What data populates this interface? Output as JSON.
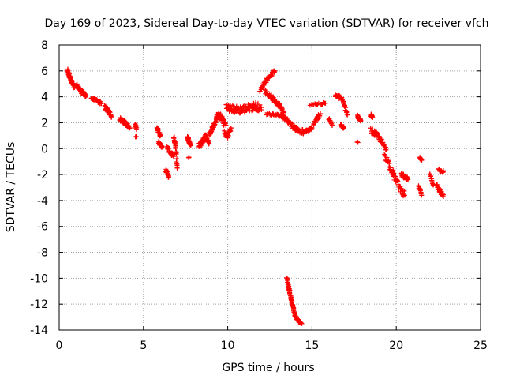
{
  "colors": {
    "series": "#ff0000",
    "grid": "#a0a0a0",
    "axis": "#000000"
  },
  "chart_data": {
    "type": "scatter",
    "title": "Day 169 of 2023, Sidereal Day-to-day VTEC variation (SDTVAR) for receiver vfch",
    "xlabel": "GPS time / hours",
    "ylabel": "SDTVAR / TECUs",
    "xlim": [
      0,
      25
    ],
    "ylim": [
      -14,
      8
    ],
    "xticks": [
      0,
      5,
      10,
      15,
      20,
      25
    ],
    "yticks": [
      -14,
      -12,
      -10,
      -8,
      -6,
      -4,
      -2,
      0,
      2,
      4,
      6,
      8
    ],
    "grid": true,
    "legend": "none",
    "marker": "plus",
    "series": [
      {
        "name": "SDTVAR",
        "segments": [
          {
            "x": [
              0.5,
              0.6,
              0.7,
              0.8,
              0.9
            ],
            "y": [
              6.0,
              5.6,
              5.3,
              5.0,
              4.7
            ],
            "spread": 0.35
          },
          {
            "x": [
              1.0,
              1.2,
              1.4,
              1.6
            ],
            "y": [
              4.9,
              4.6,
              4.3,
              4.1
            ],
            "spread": 0.3
          },
          {
            "x": [
              1.9,
              2.2,
              2.5
            ],
            "y": [
              3.9,
              3.7,
              3.5
            ],
            "spread": 0.2
          },
          {
            "x": [
              2.7,
              2.9,
              3.1
            ],
            "y": [
              3.2,
              3.0,
              2.4
            ],
            "spread": 0.35
          },
          {
            "x": [
              3.6,
              3.8,
              4.0,
              4.2
            ],
            "y": [
              2.3,
              2.1,
              1.9,
              1.6
            ],
            "spread": 0.3
          },
          {
            "x": [
              4.5,
              4.6
            ],
            "y": [
              1.9,
              1.5
            ],
            "spread": 0.2
          },
          {
            "x": [
              4.55
            ],
            "y": [
              0.9
            ],
            "spread": 0.1
          },
          {
            "x": [
              5.8,
              5.9,
              6.0
            ],
            "y": [
              1.6,
              1.3,
              1.0
            ],
            "spread": 0.2
          },
          {
            "x": [
              5.9,
              6.0,
              6.1
            ],
            "y": [
              0.5,
              0.3,
              0.1
            ],
            "spread": 0.2
          },
          {
            "x": [
              6.4,
              6.6,
              6.8
            ],
            "y": [
              0.1,
              -0.3,
              -0.6
            ],
            "spread": 0.3
          },
          {
            "x": [
              6.3,
              6.5
            ],
            "y": [
              -1.6,
              -2.2
            ],
            "spread": 0.35
          },
          {
            "x": [
              6.8,
              6.9,
              7.0
            ],
            "y": [
              0.8,
              0.3,
              -1.5
            ],
            "spread": 0.4
          },
          {
            "x": [
              7.6,
              7.7,
              7.8
            ],
            "y": [
              0.9,
              0.6,
              0.3
            ],
            "spread": 0.3
          },
          {
            "x": [
              7.7
            ],
            "y": [
              -0.7
            ],
            "spread": 0.1
          },
          {
            "x": [
              8.3,
              8.5,
              8.7,
              8.9
            ],
            "y": [
              0.2,
              0.6,
              1.0,
              0.4
            ],
            "spread": 0.4
          },
          {
            "x": [
              8.9,
              9.1,
              9.3
            ],
            "y": [
              1.1,
              1.6,
              2.1
            ],
            "spread": 0.4
          },
          {
            "x": [
              9.3,
              9.5,
              9.7,
              9.9
            ],
            "y": [
              2.4,
              2.6,
              2.2,
              1.8
            ],
            "spread": 0.5
          },
          {
            "x": [
              9.8,
              10.0,
              10.2
            ],
            "y": [
              1.2,
              1.0,
              1.6
            ],
            "spread": 0.4
          },
          {
            "x": [
              9.9,
              10.2,
              10.5,
              10.8,
              11.1,
              11.4,
              11.7,
              12.0
            ],
            "y": [
              3.2,
              3.1,
              3.0,
              3.0,
              3.1,
              3.2,
              3.3,
              3.0
            ],
            "spread": 0.6
          },
          {
            "x": [
              11.9,
              12.2,
              12.5,
              12.8
            ],
            "y": [
              4.5,
              5.1,
              5.6,
              6.0
            ],
            "spread": 0.25
          },
          {
            "x": [
              12.2,
              12.5,
              12.8,
              13.1,
              13.3
            ],
            "y": [
              4.4,
              4.1,
              3.7,
              3.3,
              2.8
            ],
            "spread": 0.35
          },
          {
            "x": [
              12.3,
              12.8,
              13.3
            ],
            "y": [
              2.7,
              2.6,
              2.5
            ],
            "spread": 0.2
          },
          {
            "x": [
              13.3,
              13.6,
              13.9,
              14.2,
              14.5
            ],
            "y": [
              2.5,
              2.1,
              1.7,
              1.4,
              1.3
            ],
            "spread": 0.35
          },
          {
            "x": [
              13.5,
              13.6,
              13.7,
              13.8,
              13.9,
              14.0,
              14.2,
              14.4
            ],
            "y": [
              -10.0,
              -10.6,
              -11.2,
              -11.8,
              -12.4,
              -12.9,
              -13.3,
              -13.5
            ],
            "spread": 0.15
          },
          {
            "x": [
              14.5,
              14.8,
              15.0
            ],
            "y": [
              1.3,
              1.4,
              1.6
            ],
            "spread": 0.2
          },
          {
            "x": [
              15.1,
              15.3,
              15.5
            ],
            "y": [
              1.9,
              2.3,
              2.7
            ],
            "spread": 0.35
          },
          {
            "x": [
              14.9,
              15.8
            ],
            "y": [
              3.4,
              3.5
            ],
            "spread": 0.15
          },
          {
            "x": [
              16.0,
              16.2
            ],
            "y": [
              2.3,
              1.8
            ],
            "spread": 0.2
          },
          {
            "x": [
              16.4,
              16.7,
              16.9,
              17.1
            ],
            "y": [
              4.1,
              3.9,
              3.6,
              2.6
            ],
            "spread": 0.35
          },
          {
            "x": [
              16.7,
              16.9
            ],
            "y": [
              1.8,
              1.6
            ],
            "spread": 0.2
          },
          {
            "x": [
              17.7,
              17.8,
              17.9
            ],
            "y": [
              2.5,
              2.3,
              2.1
            ],
            "spread": 0.2
          },
          {
            "x": [
              17.7
            ],
            "y": [
              0.5
            ],
            "spread": 0.1
          },
          {
            "x": [
              18.5,
              18.6
            ],
            "y": [
              2.6,
              2.4
            ],
            "spread": 0.15
          },
          {
            "x": [
              18.5,
              18.8,
              19.1,
              19.4
            ],
            "y": [
              1.4,
              1.1,
              0.6,
              -0.1
            ],
            "spread": 0.4
          },
          {
            "x": [
              19.3,
              19.6,
              19.9,
              20.2,
              20.5
            ],
            "y": [
              -0.4,
              -1.3,
              -2.2,
              -3.0,
              -3.6
            ],
            "spread": 0.5
          },
          {
            "x": [
              20.3,
              20.5,
              20.7
            ],
            "y": [
              -2.0,
              -2.2,
              -2.4
            ],
            "spread": 0.3
          },
          {
            "x": [
              21.4,
              21.5
            ],
            "y": [
              -0.7,
              -0.9
            ],
            "spread": 0.1
          },
          {
            "x": [
              21.3,
              21.5
            ],
            "y": [
              -2.8,
              -3.6
            ],
            "spread": 0.3
          },
          {
            "x": [
              22.0,
              22.2
            ],
            "y": [
              -2.0,
              -2.8
            ],
            "spread": 0.3
          },
          {
            "x": [
              22.5,
              22.8
            ],
            "y": [
              -1.6,
              -1.8
            ],
            "spread": 0.2
          },
          {
            "x": [
              22.4,
              22.6,
              22.8
            ],
            "y": [
              -2.9,
              -3.3,
              -3.7
            ],
            "spread": 0.35
          }
        ]
      }
    ]
  }
}
